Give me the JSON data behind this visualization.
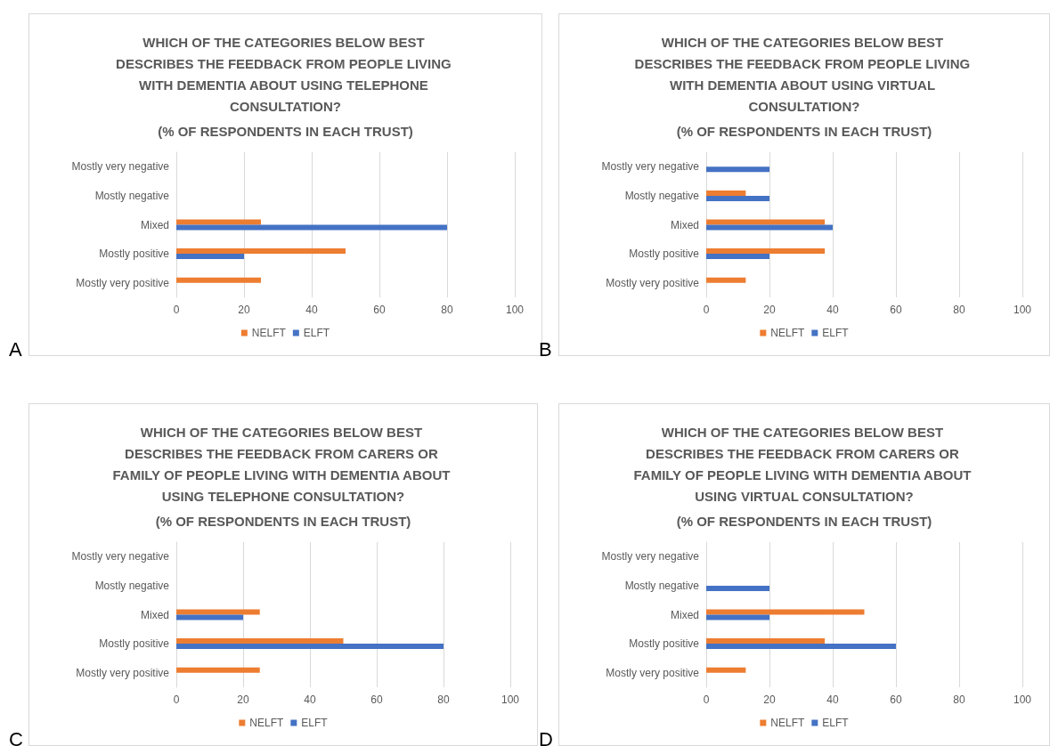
{
  "chart_data": [
    {
      "type": "bar",
      "orientation": "horizontal",
      "title": "WHICH OF THE CATEGORIES BELOW BEST DESCRIBES THE FEEDBACK FROM PEOPLE LIVING WITH DEMENTIA ABOUT USING TELEPHONE CONSULTATION?",
      "subtitle": "(% OF RESPONDENTS IN EACH TRUST)",
      "annotations": [
        "A"
      ],
      "categories": [
        "Mostly very negative",
        "Mostly negative",
        "Mixed",
        "Mostly positive",
        "Mostly very positive"
      ],
      "series": [
        {
          "name": "NELFT",
          "color": "#ed7d31",
          "values": [
            null,
            null,
            25,
            50,
            25
          ]
        },
        {
          "name": "ELFT",
          "color": "#4472c4",
          "values": [
            null,
            null,
            80,
            20,
            null
          ]
        }
      ],
      "xlim": [
        0,
        100
      ],
      "xticks": [
        0,
        20,
        40,
        60,
        80,
        100
      ],
      "grid": "x",
      "legend": "bottom"
    },
    {
      "type": "bar",
      "orientation": "horizontal",
      "title": "WHICH OF THE CATEGORIES BELOW BEST DESCRIBES THE FEEDBACK FROM PEOPLE LIVING WITH DEMENTIA ABOUT USING VIRTUAL CONSULTATION?",
      "subtitle": "(% OF RESPONDENTS IN EACH TRUST)",
      "annotations": [
        "B"
      ],
      "categories": [
        "Mostly very negative",
        "Mostly negative",
        "Mixed",
        "Mostly positive",
        "Mostly very positive"
      ],
      "series": [
        {
          "name": "NELFT",
          "color": "#ed7d31",
          "values": [
            null,
            12.5,
            37.5,
            37.5,
            12.5
          ]
        },
        {
          "name": "ELFT",
          "color": "#4472c4",
          "values": [
            20,
            20,
            40,
            20,
            null
          ]
        }
      ],
      "xlim": [
        0,
        100
      ],
      "xticks": [
        0,
        20,
        40,
        60,
        80,
        100
      ],
      "grid": "x",
      "legend": "bottom"
    },
    {
      "type": "bar",
      "orientation": "horizontal",
      "title": "WHICH OF THE CATEGORIES BELOW BEST DESCRIBES THE FEEDBACK FROM CARERS OR FAMILY OF PEOPLE LIVING WITH DEMENTIA ABOUT USING TELEPHONE CONSULTATION?",
      "subtitle": "(% OF RESPONDENTS IN EACH TRUST)",
      "annotations": [
        "C"
      ],
      "categories": [
        "Mostly very negative",
        "Mostly negative",
        "Mixed",
        "Mostly positive",
        "Mostly very positive"
      ],
      "series": [
        {
          "name": "NELFT",
          "color": "#ed7d31",
          "values": [
            null,
            null,
            25,
            50,
            25
          ]
        },
        {
          "name": "ELFT",
          "color": "#4472c4",
          "values": [
            null,
            null,
            20,
            80,
            null
          ]
        }
      ],
      "xlim": [
        0,
        100
      ],
      "xticks": [
        0,
        20,
        40,
        60,
        80,
        100
      ],
      "grid": "x",
      "legend": "bottom"
    },
    {
      "type": "bar",
      "orientation": "horizontal",
      "title": "WHICH OF THE CATEGORIES BELOW BEST DESCRIBES THE FEEDBACK FROM CARERS OR FAMILY OF PEOPLE LIVING WITH DEMENTIA ABOUT USING VIRTUAL CONSULTATION?",
      "subtitle": "(% OF RESPONDENTS IN EACH TRUST)",
      "annotations": [
        "D"
      ],
      "categories": [
        "Mostly very negative",
        "Mostly negative",
        "Mixed",
        "Mostly positive",
        "Mostly very positive"
      ],
      "series": [
        {
          "name": "NELFT",
          "color": "#ed7d31",
          "values": [
            null,
            null,
            50,
            37.5,
            12.5
          ]
        },
        {
          "name": "ELFT",
          "color": "#4472c4",
          "values": [
            null,
            20,
            20,
            60,
            null
          ]
        }
      ],
      "xlim": [
        0,
        100
      ],
      "xticks": [
        0,
        20,
        40,
        60,
        80,
        100
      ],
      "grid": "x",
      "legend": "bottom"
    }
  ]
}
